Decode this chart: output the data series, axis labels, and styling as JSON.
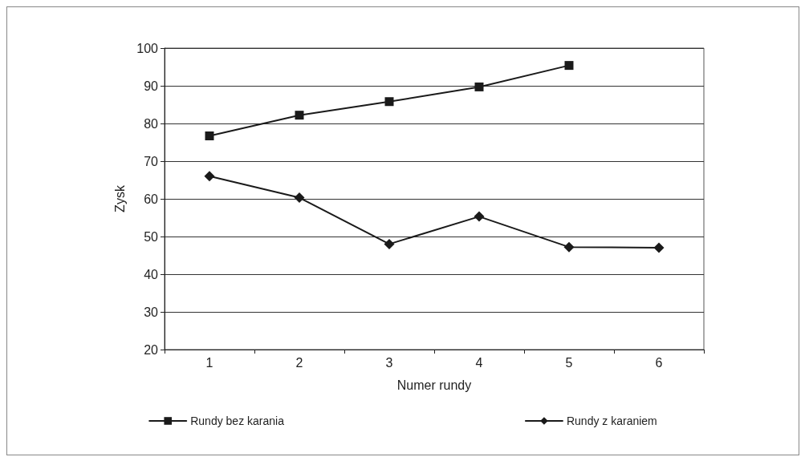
{
  "chart_data": {
    "type": "line",
    "xlabel": "Numer rundy",
    "ylabel": "Zysk",
    "categories": [
      "1",
      "2",
      "3",
      "4",
      "5",
      "6"
    ],
    "series": [
      {
        "name": "Rundy bez karania",
        "color": "#1a1a1a",
        "marker": "square",
        "values": [
          76.7,
          82.2,
          85.8,
          89.7,
          95.4,
          null
        ]
      },
      {
        "name": "Rundy z karaniem",
        "color": "#1a1a1a",
        "marker": "diamond",
        "values": [
          66,
          60.3,
          48,
          55.3,
          47.2,
          47
        ]
      }
    ],
    "ylim": [
      20,
      100
    ],
    "yticks": [
      20,
      30,
      40,
      50,
      60,
      70,
      80,
      90,
      100
    ],
    "grid": "y",
    "legend": "bottom",
    "line_style": "solid"
  }
}
